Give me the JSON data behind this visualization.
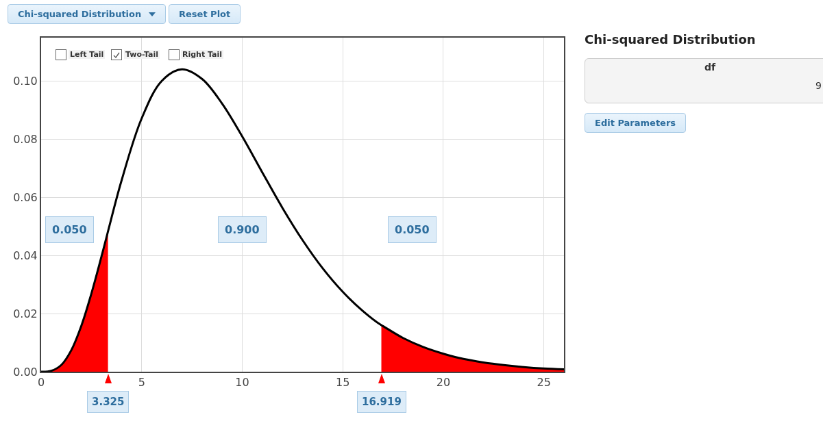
{
  "chart_data": {
    "type": "line",
    "xlim": [
      0,
      26
    ],
    "ylim": [
      0,
      0.115
    ],
    "xticks": [
      0,
      5,
      10,
      15,
      20,
      25
    ],
    "yticks": [
      {
        "value": 0,
        "label": "0.00"
      },
      {
        "value": 0.02,
        "label": "0.02"
      },
      {
        "value": 0.04,
        "label": "0.04"
      },
      {
        "value": 0.06,
        "label": "0.06"
      },
      {
        "value": 0.08,
        "label": "0.08"
      },
      {
        "value": 0.1,
        "label": "0.10"
      }
    ],
    "grid": true,
    "marker": "none",
    "line_style": "solid",
    "series": [
      {
        "type": "area",
        "color": "#ff0000",
        "x": [
          0,
          0.5,
          1,
          1.5,
          2,
          2.5,
          3,
          3.325
        ],
        "values": [
          0,
          0.0003,
          0.0023,
          0.0074,
          0.0158,
          0.0269,
          0.0396,
          0.0483
        ]
      },
      {
        "type": "area",
        "color": "#ff0000",
        "x": [
          16.919,
          17,
          18,
          19,
          20,
          21,
          22,
          23,
          24,
          25,
          26
        ],
        "values": [
          0.016,
          0.0157,
          0.0116,
          0.0085,
          0.0062,
          0.0044,
          0.0032,
          0.0023,
          0.0016,
          0.0011,
          0.0008
        ]
      },
      {
        "color": "#000000",
        "x": [
          0,
          0.5,
          1,
          1.5,
          2,
          2.5,
          3,
          3.325,
          4,
          5,
          6,
          7,
          8,
          9,
          10,
          11,
          12,
          13,
          14,
          15,
          16,
          16.919,
          17,
          18,
          19,
          20,
          21,
          22,
          23,
          24,
          25,
          26
        ],
        "values": [
          0,
          0.0003,
          0.0023,
          0.0074,
          0.0158,
          0.0269,
          0.0396,
          0.0483,
          0.0658,
          0.0872,
          0.1001,
          0.1041,
          0.1008,
          0.0923,
          0.081,
          0.0686,
          0.0564,
          0.0453,
          0.0356,
          0.0275,
          0.0209,
          0.016,
          0.0157,
          0.0116,
          0.0085,
          0.0062,
          0.0044,
          0.0032,
          0.0023,
          0.0016,
          0.0011,
          0.0008
        ]
      }
    ],
    "annotations": [
      "0.050",
      "0.900",
      "0.050",
      {
        "text": "3.325",
        "x": 3.325,
        "y": 0
      },
      {
        "text": "16.919",
        "x": 16.919,
        "y": 0
      },
      "Chi-squared Distribution",
      "Reset Plot",
      "Left Tail",
      "Two-Tail",
      "Right Tail",
      "Chi-squared Distribution",
      "df",
      "9",
      "Edit Parameters"
    ]
  }
}
